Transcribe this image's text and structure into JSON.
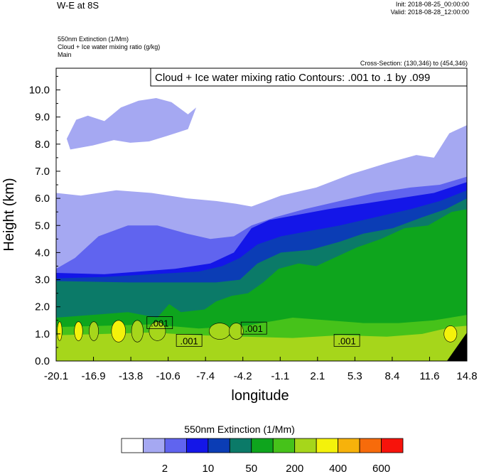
{
  "header": {
    "title": "W-E at 8S",
    "init": "Init: 2018-08-25_00:00:00",
    "valid": "Valid: 2018-08-28_12:00:00",
    "fields": [
      "550nm Extinction   (1/Mm)",
      "Cloud + Ice water mixing ratio   (g/kg)",
      "Main"
    ],
    "cross_section": "Cross-Section: (130,346) to (454,346)"
  },
  "chart_data": {
    "type": "heatmap",
    "xlabel": "longitude",
    "ylabel": "Height (km)",
    "x_ticks": [
      "-20.1",
      "-16.9",
      "-13.8",
      "-10.6",
      "-7.4",
      "-4.2",
      "-1.1",
      "2.1",
      "5.3",
      "8.4",
      "11.6",
      "14.8"
    ],
    "y_ticks": [
      "0.0",
      "1.0",
      "2.0",
      "3.0",
      "4.0",
      "5.0",
      "6.0",
      "7.0",
      "8.0",
      "9.0",
      "10.0"
    ],
    "xlim": [
      -20.1,
      14.8
    ],
    "ylim": [
      0,
      10.8
    ],
    "contour_title": "Cloud + Ice water mixing ratio Contours: .001 to .1 by .099",
    "contour_labels": [
      ".001",
      ".001",
      ".001",
      ".001"
    ],
    "colorbar": {
      "title": "550nm Extinction  (1/Mm)",
      "colors": [
        "#ffffff",
        "#a5a8f2",
        "#6064ef",
        "#1416e8",
        "#0b3db5",
        "#0b7a68",
        "#0ea51d",
        "#46c21a",
        "#a6d61b",
        "#f4f20b",
        "#f7b20b",
        "#f76b0b",
        "#f7130b"
      ],
      "labels": [
        "2",
        "10",
        "50",
        "200",
        "400",
        "600"
      ]
    },
    "layers": [
      {
        "name": "lavender_haze",
        "color": "#a5a8f2",
        "top": [
          [
            -20.1,
            6.2
          ],
          [
            -18,
            6.1
          ],
          [
            -15,
            6.3
          ],
          [
            -12,
            6.2
          ],
          [
            -9,
            6.0
          ],
          [
            -6.5,
            5.9
          ],
          [
            -4.8,
            5.8
          ],
          [
            -3.5,
            5.7
          ],
          [
            -1,
            6.1
          ],
          [
            2,
            6.4
          ],
          [
            5,
            6.9
          ],
          [
            8,
            7.3
          ],
          [
            10.5,
            7.6
          ],
          [
            12,
            7.5
          ],
          [
            13.3,
            8.4
          ],
          [
            14.8,
            8.7
          ]
        ]
      },
      {
        "name": "medium_blue",
        "color": "#6064ef",
        "top": [
          [
            -20.1,
            3.4
          ],
          [
            -18.5,
            3.8
          ],
          [
            -16.5,
            4.6
          ],
          [
            -14,
            5.0
          ],
          [
            -11.5,
            5.0
          ],
          [
            -9,
            4.7
          ],
          [
            -7,
            4.5
          ],
          [
            -5,
            4.6
          ],
          [
            -3.5,
            5.0
          ],
          [
            -1.5,
            5.3
          ],
          [
            1,
            5.6
          ],
          [
            4,
            5.9
          ],
          [
            7,
            6.2
          ],
          [
            10,
            6.4
          ],
          [
            12.5,
            6.5
          ],
          [
            14.8,
            6.8
          ]
        ]
      },
      {
        "name": "blue",
        "color": "#1416e8",
        "top": [
          [
            -20.1,
            3.25
          ],
          [
            -16,
            3.2
          ],
          [
            -13,
            3.3
          ],
          [
            -10,
            3.4
          ],
          [
            -7,
            3.6
          ],
          [
            -5,
            4.0
          ],
          [
            -3.5,
            4.9
          ],
          [
            -2,
            5.2
          ],
          [
            0.5,
            5.4
          ],
          [
            3,
            5.6
          ],
          [
            6,
            5.8
          ],
          [
            9,
            6.0
          ],
          [
            12,
            6.2
          ],
          [
            14.8,
            6.6
          ]
        ]
      },
      {
        "name": "dark_blue",
        "color": "#0b3db5",
        "top": [
          [
            -20.1,
            3.05
          ],
          [
            -16,
            3.1
          ],
          [
            -12,
            3.2
          ],
          [
            -8,
            3.3
          ],
          [
            -6,
            3.5
          ],
          [
            -4.5,
            3.8
          ],
          [
            -3,
            4.3
          ],
          [
            -1,
            4.6
          ],
          [
            1.5,
            4.8
          ],
          [
            4,
            5.0
          ],
          [
            7,
            5.3
          ],
          [
            10,
            5.6
          ],
          [
            12.5,
            5.9
          ],
          [
            14.8,
            6.3
          ]
        ]
      },
      {
        "name": "teal",
        "color": "#0b7a68",
        "top": [
          [
            -20.1,
            2.95
          ],
          [
            -14,
            2.9
          ],
          [
            -10,
            2.9
          ],
          [
            -6.5,
            2.9
          ],
          [
            -4.5,
            3.0
          ],
          [
            -3,
            3.6
          ],
          [
            -1,
            4.0
          ],
          [
            1.5,
            4.1
          ],
          [
            4,
            4.4
          ],
          [
            6,
            4.7
          ],
          [
            8.5,
            4.9
          ],
          [
            11,
            5.3
          ],
          [
            13,
            5.6
          ],
          [
            14.8,
            6.0
          ]
        ]
      },
      {
        "name": "green",
        "color": "#0ea51d",
        "top": [
          [
            -20.1,
            1.6
          ],
          [
            -17,
            1.7
          ],
          [
            -14,
            1.8
          ],
          [
            -11.5,
            1.6
          ],
          [
            -10.5,
            2.1
          ],
          [
            -9.5,
            1.8
          ],
          [
            -7.5,
            1.9
          ],
          [
            -6.5,
            2.2
          ],
          [
            -5.2,
            2.4
          ],
          [
            -3.8,
            2.5
          ],
          [
            -2.5,
            2.9
          ],
          [
            -1.2,
            3.4
          ],
          [
            0.5,
            3.6
          ],
          [
            2,
            3.5
          ],
          [
            3.5,
            3.8
          ],
          [
            5.5,
            4.2
          ],
          [
            7.5,
            4.5
          ],
          [
            9.5,
            4.9
          ],
          [
            11.5,
            5.0
          ],
          [
            13.5,
            5.5
          ],
          [
            14.8,
            5.6
          ]
        ]
      },
      {
        "name": "light_green",
        "color": "#46c21a",
        "top": [
          [
            -20.1,
            1.25
          ],
          [
            -16,
            1.3
          ],
          [
            -12,
            1.35
          ],
          [
            -8,
            1.2
          ],
          [
            -4,
            1.3
          ],
          [
            0,
            1.6
          ],
          [
            3,
            1.5
          ],
          [
            6,
            1.4
          ],
          [
            9,
            1.4
          ],
          [
            12,
            1.5
          ],
          [
            14.8,
            1.7
          ]
        ]
      },
      {
        "name": "yellow_green",
        "color": "#a6d61b",
        "top": [
          [
            -20.1,
            0.95
          ],
          [
            -16,
            1.0
          ],
          [
            -12,
            1.05
          ],
          [
            -8,
            0.95
          ],
          [
            -4,
            0.9
          ],
          [
            0,
            0.85
          ],
          [
            4,
            0.95
          ],
          [
            8,
            0.9
          ],
          [
            11,
            1.0
          ],
          [
            13.5,
            1.25
          ],
          [
            14.8,
            1.3
          ]
        ]
      }
    ],
    "upper_cloud": [
      [
        -19.2,
        8.2
      ],
      [
        -18.4,
        8.9
      ],
      [
        -17.4,
        9.05
      ],
      [
        -16,
        8.85
      ],
      [
        -14.6,
        9.35
      ],
      [
        -13.1,
        9.6
      ],
      [
        -11.6,
        9.7
      ],
      [
        -10.3,
        9.55
      ],
      [
        -8.9,
        9.1
      ],
      [
        -8.2,
        9.35
      ],
      [
        -8.9,
        8.55
      ],
      [
        -10.7,
        8.3
      ],
      [
        -12.2,
        8.1
      ],
      [
        -13.8,
        8.05
      ],
      [
        -15.2,
        8.15
      ],
      [
        -17,
        7.95
      ],
      [
        -18.9,
        7.8
      ]
    ],
    "contour_spots": [
      {
        "x": -19.8,
        "y": 1.1,
        "rx": 0.2,
        "ry": 0.35,
        "color": "#f4f20b"
      },
      {
        "x": -18.2,
        "y": 1.1,
        "rx": 0.35,
        "ry": 0.35,
        "color": "#f4f20b"
      },
      {
        "x": -16.9,
        "y": 1.1,
        "rx": 0.4,
        "ry": 0.35,
        "color": "#a6d61b"
      },
      {
        "x": -14.8,
        "y": 1.1,
        "rx": 0.6,
        "ry": 0.4,
        "color": "#f4f20b"
      },
      {
        "x": -13.2,
        "y": 1.1,
        "rx": 0.5,
        "ry": 0.4,
        "color": "#a6d61b"
      },
      {
        "x": -11.5,
        "y": 1.1,
        "rx": 0.7,
        "ry": 0.35,
        "color": "#a6d61b"
      },
      {
        "x": -6.2,
        "y": 1.1,
        "rx": 0.9,
        "ry": 0.3,
        "color": "#a6d61b"
      },
      {
        "x": -4.8,
        "y": 1.1,
        "rx": 0.6,
        "ry": 0.3,
        "color": "#a6d61b"
      },
      {
        "x": 13.4,
        "y": 1.0,
        "rx": 0.55,
        "ry": 0.3,
        "color": "#f4f20b"
      }
    ]
  }
}
